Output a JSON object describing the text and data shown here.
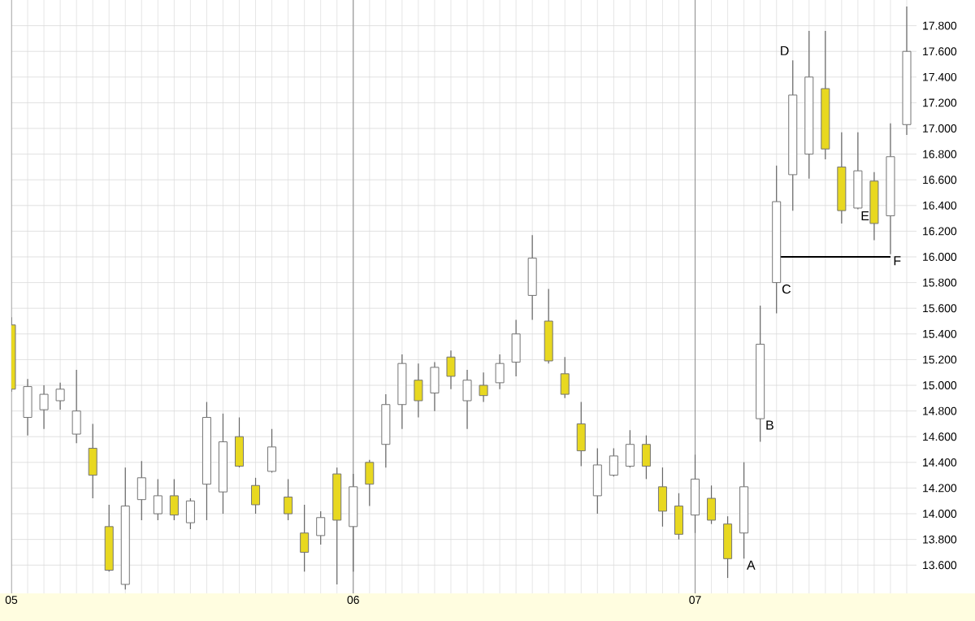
{
  "chart_data": {
    "type": "candlestick",
    "categories": [
      "05",
      null,
      null,
      null,
      null,
      null,
      null,
      null,
      null,
      null,
      null,
      null,
      null,
      null,
      null,
      null,
      null,
      null,
      null,
      null,
      null,
      "06",
      null,
      null,
      null,
      null,
      null,
      null,
      null,
      null,
      null,
      null,
      null,
      null,
      null,
      null,
      null,
      null,
      null,
      null,
      null,
      null,
      "07",
      null,
      null,
      null,
      null,
      null,
      null,
      null,
      null,
      null,
      null,
      null,
      null,
      null
    ],
    "ohlc": [
      [
        15.47,
        15.53,
        14.95,
        14.97
      ],
      [
        14.75,
        15.05,
        14.61,
        14.99
      ],
      [
        14.81,
        15.0,
        14.66,
        14.93
      ],
      [
        14.88,
        15.02,
        14.81,
        14.97
      ],
      [
        14.62,
        15.12,
        14.55,
        14.8
      ],
      [
        14.51,
        14.7,
        14.12,
        14.3
      ],
      [
        13.9,
        14.07,
        13.55,
        13.56
      ],
      [
        13.45,
        14.36,
        13.41,
        14.06
      ],
      [
        14.11,
        14.41,
        13.95,
        14.28
      ],
      [
        14.0,
        14.27,
        13.95,
        14.14
      ],
      [
        14.14,
        14.27,
        13.95,
        13.99
      ],
      [
        13.93,
        14.12,
        13.88,
        14.1
      ],
      [
        14.23,
        14.87,
        13.95,
        14.75
      ],
      [
        14.17,
        14.78,
        14.0,
        14.56
      ],
      [
        14.6,
        14.75,
        14.36,
        14.37
      ],
      [
        14.22,
        14.28,
        14.0,
        14.07
      ],
      [
        14.33,
        14.66,
        14.32,
        14.52
      ],
      [
        14.13,
        14.27,
        13.95,
        14.0
      ],
      [
        13.85,
        14.07,
        13.55,
        13.7
      ],
      [
        13.83,
        14.02,
        13.76,
        13.97
      ],
      [
        14.31,
        14.36,
        13.45,
        13.95
      ],
      [
        13.9,
        14.31,
        13.55,
        14.21
      ],
      [
        14.4,
        14.42,
        14.06,
        14.23
      ],
      [
        14.54,
        14.93,
        14.36,
        14.85
      ],
      [
        14.85,
        15.24,
        14.66,
        15.17
      ],
      [
        15.04,
        15.17,
        14.75,
        14.88
      ],
      [
        14.94,
        15.18,
        14.8,
        15.14
      ],
      [
        15.22,
        15.27,
        14.97,
        15.07
      ],
      [
        14.88,
        15.12,
        14.66,
        15.04
      ],
      [
        15.0,
        15.1,
        14.87,
        14.92
      ],
      [
        15.02,
        15.24,
        14.97,
        15.17
      ],
      [
        15.18,
        15.51,
        15.07,
        15.4
      ],
      [
        15.7,
        16.17,
        15.51,
        15.99
      ],
      [
        15.5,
        15.75,
        15.17,
        15.19
      ],
      [
        15.09,
        15.22,
        14.9,
        14.93
      ],
      [
        14.7,
        14.87,
        14.37,
        14.49
      ],
      [
        14.14,
        14.51,
        14.0,
        14.38
      ],
      [
        14.3,
        14.51,
        14.29,
        14.45
      ],
      [
        14.37,
        14.65,
        14.36,
        14.54
      ],
      [
        14.54,
        14.61,
        14.27,
        14.37
      ],
      [
        14.21,
        14.36,
        13.9,
        14.02
      ],
      [
        14.06,
        14.16,
        13.8,
        13.84
      ],
      [
        13.99,
        14.46,
        13.85,
        14.27
      ],
      [
        14.12,
        14.22,
        13.92,
        13.95
      ],
      [
        13.92,
        13.98,
        13.5,
        13.65
      ],
      [
        13.85,
        14.4,
        13.65,
        14.21
      ],
      [
        14.74,
        15.62,
        14.56,
        15.32
      ],
      [
        15.8,
        16.71,
        15.56,
        16.43
      ],
      [
        16.64,
        17.53,
        16.36,
        17.26
      ],
      [
        16.8,
        17.76,
        16.61,
        17.4
      ],
      [
        17.31,
        17.76,
        16.76,
        16.84
      ],
      [
        16.7,
        16.97,
        16.26,
        16.36
      ],
      [
        16.38,
        16.97,
        16.37,
        16.67
      ],
      [
        16.59,
        16.66,
        16.13,
        16.26
      ],
      [
        16.32,
        17.04,
        16.02,
        16.78
      ],
      [
        17.03,
        17.95,
        16.95,
        17.6
      ]
    ],
    "colors": [
      "#e8d820",
      "#ffffff",
      "#ffffff",
      "#ffffff",
      "#ffffff",
      "#e8d820",
      "#e8d820",
      "#ffffff",
      "#ffffff",
      "#ffffff",
      "#e8d820",
      "#ffffff",
      "#ffffff",
      "#ffffff",
      "#e8d820",
      "#e8d820",
      "#ffffff",
      "#e8d820",
      "#e8d820",
      "#ffffff",
      "#e8d820",
      "#ffffff",
      "#e8d820",
      "#ffffff",
      "#ffffff",
      "#e8d820",
      "#ffffff",
      "#e8d820",
      "#ffffff",
      "#e8d820",
      "#ffffff",
      "#ffffff",
      "#ffffff",
      "#e8d820",
      "#e8d820",
      "#e8d820",
      "#ffffff",
      "#ffffff",
      "#ffffff",
      "#e8d820",
      "#e8d820",
      "#e8d820",
      "#ffffff",
      "#e8d820",
      "#e8d820",
      "#ffffff",
      "#ffffff",
      "#ffffff",
      "#ffffff",
      "#ffffff",
      "#e8d820",
      "#e8d820",
      "#ffffff",
      "#e8d820",
      "#ffffff",
      "#ffffff"
    ],
    "series": [
      {
        "type": "line",
        "values": [
          null,
          null,
          null,
          null,
          null,
          null,
          null,
          null,
          null,
          null,
          null,
          null,
          null,
          null,
          null,
          null,
          null,
          null,
          null,
          null,
          null,
          null,
          null,
          null,
          null,
          null,
          null,
          null,
          null,
          null,
          null,
          null,
          null,
          null,
          null,
          null,
          null,
          null,
          null,
          null,
          null,
          null,
          null,
          null,
          null,
          null,
          null,
          16.0,
          16.0,
          16.0,
          16.0,
          16.0,
          16.0,
          16.0,
          16.0,
          null
        ],
        "color": "#000000"
      }
    ],
    "ylim": [
      13.38,
      18.0
    ],
    "yticks": [
      {
        "value": 13.6,
        "label": "13.600"
      },
      {
        "value": 13.8,
        "label": "13.800"
      },
      {
        "value": 14.0,
        "label": "14.000"
      },
      {
        "value": 14.2,
        "label": "14.200"
      },
      {
        "value": 14.4,
        "label": "14.400"
      },
      {
        "value": 14.6,
        "label": "14.600"
      },
      {
        "value": 14.8,
        "label": "14.800"
      },
      {
        "value": 15.0,
        "label": "15.000"
      },
      {
        "value": 15.2,
        "label": "15.200"
      },
      {
        "value": 15.4,
        "label": "15.400"
      },
      {
        "value": 15.6,
        "label": "15.600"
      },
      {
        "value": 15.8,
        "label": "15.800"
      },
      {
        "value": 16.0,
        "label": "16.000"
      },
      {
        "value": 16.2,
        "label": "16.200"
      },
      {
        "value": 16.4,
        "label": "16.400"
      },
      {
        "value": 16.6,
        "label": "16.600"
      },
      {
        "value": 16.8,
        "label": "16.800"
      },
      {
        "value": 17.0,
        "label": "17.000"
      },
      {
        "value": 17.2,
        "label": "17.200"
      },
      {
        "value": 17.4,
        "label": "17.400"
      },
      {
        "value": 17.6,
        "label": "17.600"
      },
      {
        "value": 17.8,
        "label": "17.800"
      }
    ],
    "grid": true,
    "annotations": [
      {
        "text": "A",
        "y": 13.65
      },
      {
        "text": "B",
        "y": 14.74
      },
      {
        "text": "C",
        "y": 15.8
      },
      {
        "text": "D",
        "y": 17.53
      },
      {
        "text": "E",
        "y": 16.37
      },
      {
        "text": "F",
        "y": 16.02
      }
    ]
  }
}
